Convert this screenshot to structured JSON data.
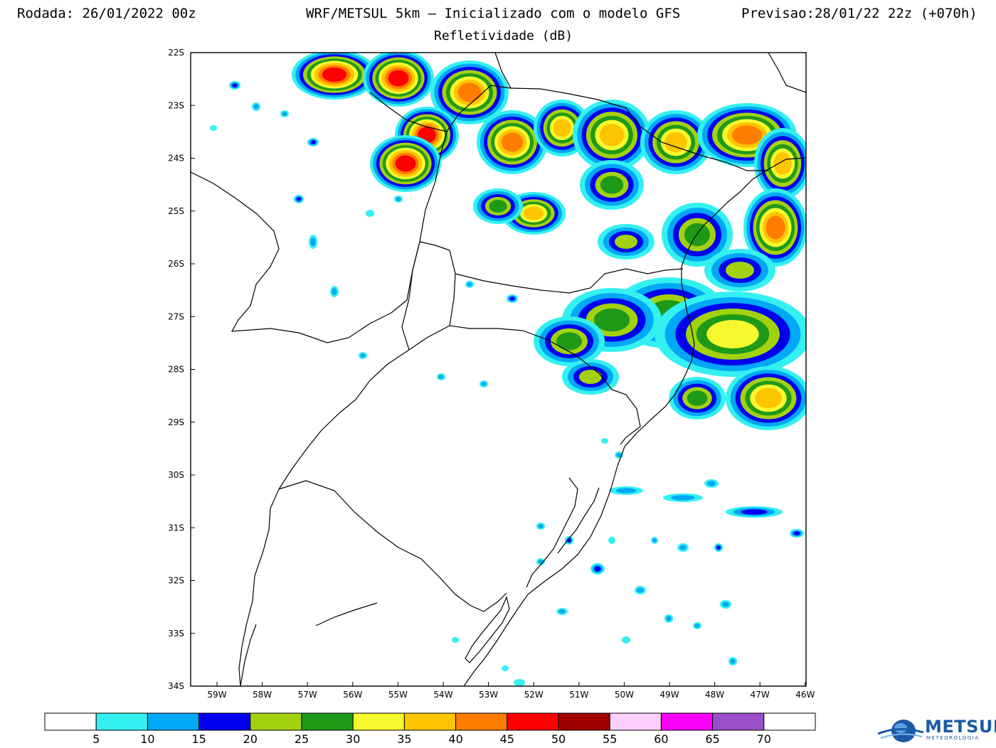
{
  "header": {
    "run": "Rodada: 26/01/2022 00z",
    "model": "WRF/METSUL 5km – Inicializado com o modelo GFS",
    "forecast": "Previsao:28/01/22 22z (+070h)",
    "subtitle": "Refletividade (dB)"
  },
  "map": {
    "lat_labels": [
      "22S",
      "23S",
      "24S",
      "25S",
      "26S",
      "27S",
      "28S",
      "29S",
      "30S",
      "31S",
      "32S",
      "33S",
      "34S"
    ],
    "lon_labels": [
      "59W",
      "58W",
      "57W",
      "56W",
      "55W",
      "54W",
      "53W",
      "52W",
      "51W",
      "50W",
      "49W",
      "48W",
      "47W",
      "46W"
    ],
    "lat_range": [
      -34,
      -22
    ],
    "lon_range": [
      -59.5,
      -46
    ]
  },
  "colorbar": {
    "labels": [
      "5",
      "10",
      "15",
      "20",
      "25",
      "30",
      "35",
      "40",
      "45",
      "50",
      "55",
      "60",
      "65",
      "70"
    ],
    "colors": [
      "#ffffff",
      "#34f0f0",
      "#00a8f5",
      "#0000ee",
      "#a4d10e",
      "#1f9a18",
      "#f8f82e",
      "#fdc400",
      "#fd7d00",
      "#fc0000",
      "#a00000",
      "#fdd0fb",
      "#fa00f8",
      "#9a4fc8",
      "#ffffff"
    ]
  },
  "logo": {
    "text": "METSUL",
    "sub": "METEOROLOGIA"
  }
}
